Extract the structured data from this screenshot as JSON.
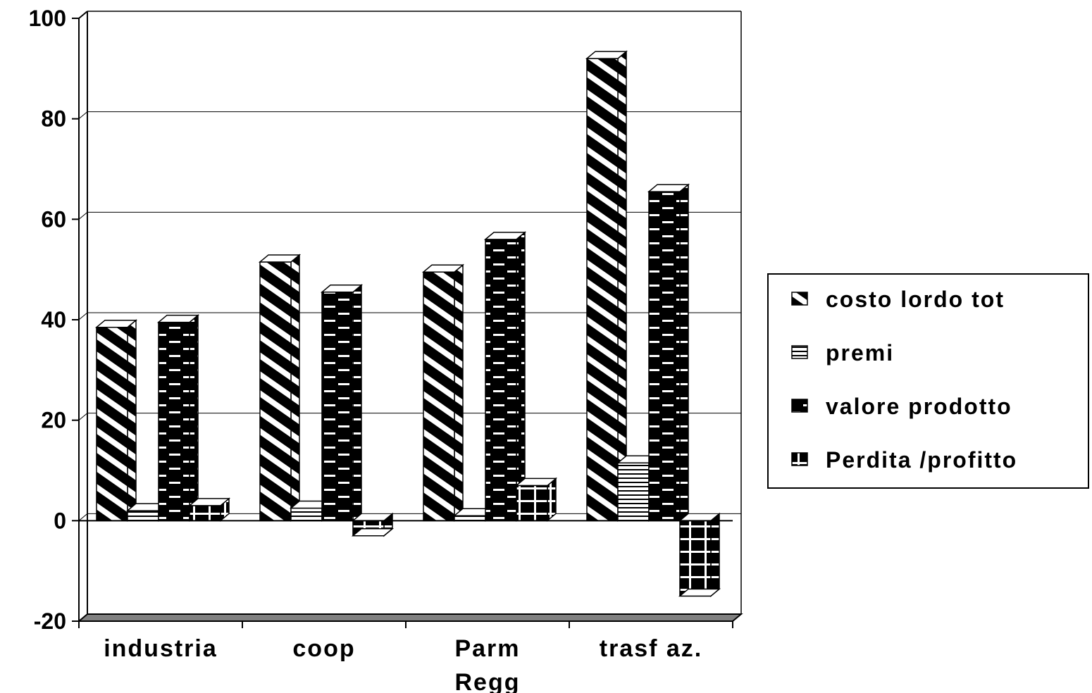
{
  "chart_data": {
    "type": "bar",
    "title": "",
    "xlabel": "",
    "ylabel": "",
    "categories": [
      [
        "industria"
      ],
      [
        "coop"
      ],
      [
        "Parm",
        "Regg"
      ],
      [
        "trasf az."
      ]
    ],
    "series": [
      {
        "name": "costo lordo tot",
        "values": [
          38.5,
          51.5,
          49.5,
          92
        ],
        "fill": "diag-stripe"
      },
      {
        "name": "premi",
        "values": [
          2,
          2.5,
          1,
          11.5
        ],
        "fill": "horiz-lines"
      },
      {
        "name": "valore prodotto",
        "values": [
          39.5,
          45.5,
          56,
          65.5
        ],
        "fill": "brick"
      },
      {
        "name": "Perdita /profitto",
        "values": [
          3,
          -3,
          7,
          -15
        ],
        "fill": "grid"
      }
    ],
    "yticks": [
      "100",
      "80",
      "60",
      "40",
      "20",
      "0",
      "-20"
    ],
    "ylim": [
      -20,
      100
    ],
    "grid": true,
    "legend": "right"
  },
  "colors": {
    "bar_dark": "#000000",
    "bar_light": "#ffffff",
    "grid": "#000000",
    "floor": "#808080"
  }
}
